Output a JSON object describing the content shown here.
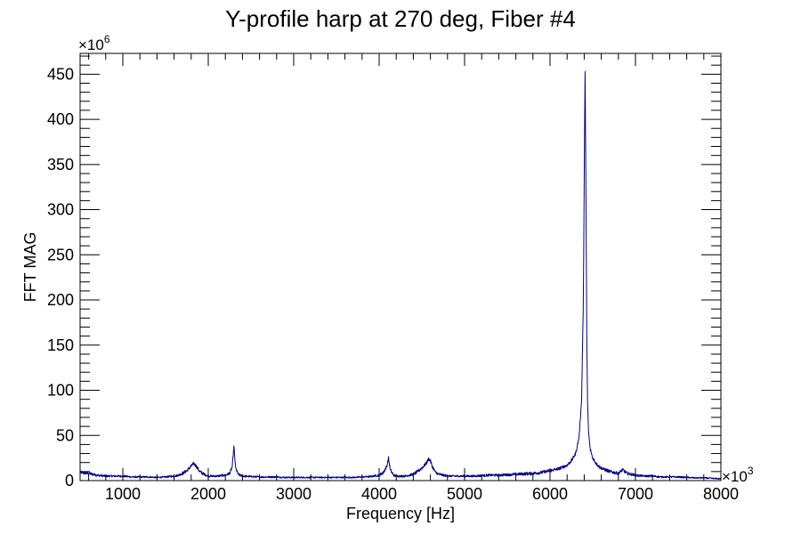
{
  "chart_data": {
    "type": "line",
    "title": "Y-profile harp at 270 deg, Fiber #4",
    "xlabel": "Frequency [Hz]",
    "ylabel": "FFT MAG",
    "x_multiplier": {
      "base": "×10",
      "exp": "3"
    },
    "y_multiplier": {
      "base": "×10",
      "exp": "6"
    },
    "xlim": [
      500,
      8000
    ],
    "ylim": [
      0,
      473
    ],
    "x_ticks": [
      1000,
      2000,
      3000,
      4000,
      5000,
      6000,
      7000,
      8000
    ],
    "x_tick_labels": [
      "1000",
      "2000",
      "3000",
      "4000",
      "5000",
      "6000",
      "7000",
      "8000"
    ],
    "y_ticks": [
      0,
      50,
      100,
      150,
      200,
      250,
      300,
      350,
      400,
      450
    ],
    "y_tick_labels": [
      "0",
      "50",
      "100",
      "150",
      "200",
      "250",
      "300",
      "350",
      "400",
      "450"
    ],
    "line_color": "#000080",
    "grid": false,
    "series": [
      {
        "x": [
          500,
          600,
          700,
          800,
          900,
          1000,
          1100,
          1200,
          1300,
          1400,
          1500,
          1600,
          1650,
          1700,
          1750,
          1800,
          1830,
          1860,
          1900,
          1950,
          2000,
          2100,
          2200,
          2250,
          2280,
          2300,
          2320,
          2350,
          2400,
          2500,
          2600,
          2700,
          2800,
          2900,
          3000,
          3100,
          3200,
          3300,
          3400,
          3500,
          3600,
          3700,
          3800,
          3900,
          4000,
          4050,
          4090,
          4110,
          4130,
          4170,
          4200,
          4300,
          4400,
          4450,
          4500,
          4550,
          4580,
          4600,
          4620,
          4660,
          4700,
          4800,
          4900,
          5000,
          5100,
          5200,
          5300,
          5400,
          5500,
          5600,
          5700,
          5800,
          5900,
          6000,
          6100,
          6200,
          6250,
          6300,
          6340,
          6370,
          6390,
          6400,
          6410,
          6420,
          6430,
          6440,
          6450,
          6470,
          6500,
          6540,
          6580,
          6620,
          6700,
          6800,
          6850,
          6900,
          7000,
          7100,
          7200,
          7300,
          7400,
          7500,
          7600,
          7700,
          7800,
          7900,
          8000
        ],
        "y": [
          9,
          8,
          6,
          5,
          5,
          5,
          4,
          4,
          4,
          3.5,
          4,
          5,
          6,
          8,
          11,
          16,
          19,
          16,
          10,
          7,
          5,
          5,
          6,
          8,
          15,
          38,
          14,
          7,
          5,
          4.5,
          4,
          4,
          4,
          3.5,
          3.5,
          3.5,
          3.5,
          3.5,
          3.5,
          3.5,
          3.5,
          3.5,
          4,
          4.5,
          6,
          9,
          16,
          25,
          12,
          6,
          5,
          5,
          7,
          10,
          14,
          19,
          24,
          22,
          16,
          9,
          7,
          5,
          5,
          5,
          5,
          5.5,
          6,
          6,
          6.5,
          7,
          7.5,
          8,
          9,
          11,
          13,
          17,
          22,
          30,
          48,
          90,
          200,
          330,
          452,
          330,
          160,
          85,
          55,
          35,
          25,
          19,
          15,
          13,
          10,
          8,
          12,
          8,
          6,
          5,
          5,
          4,
          4,
          4,
          3.5,
          3,
          3,
          2.5,
          2
        ]
      }
    ]
  }
}
